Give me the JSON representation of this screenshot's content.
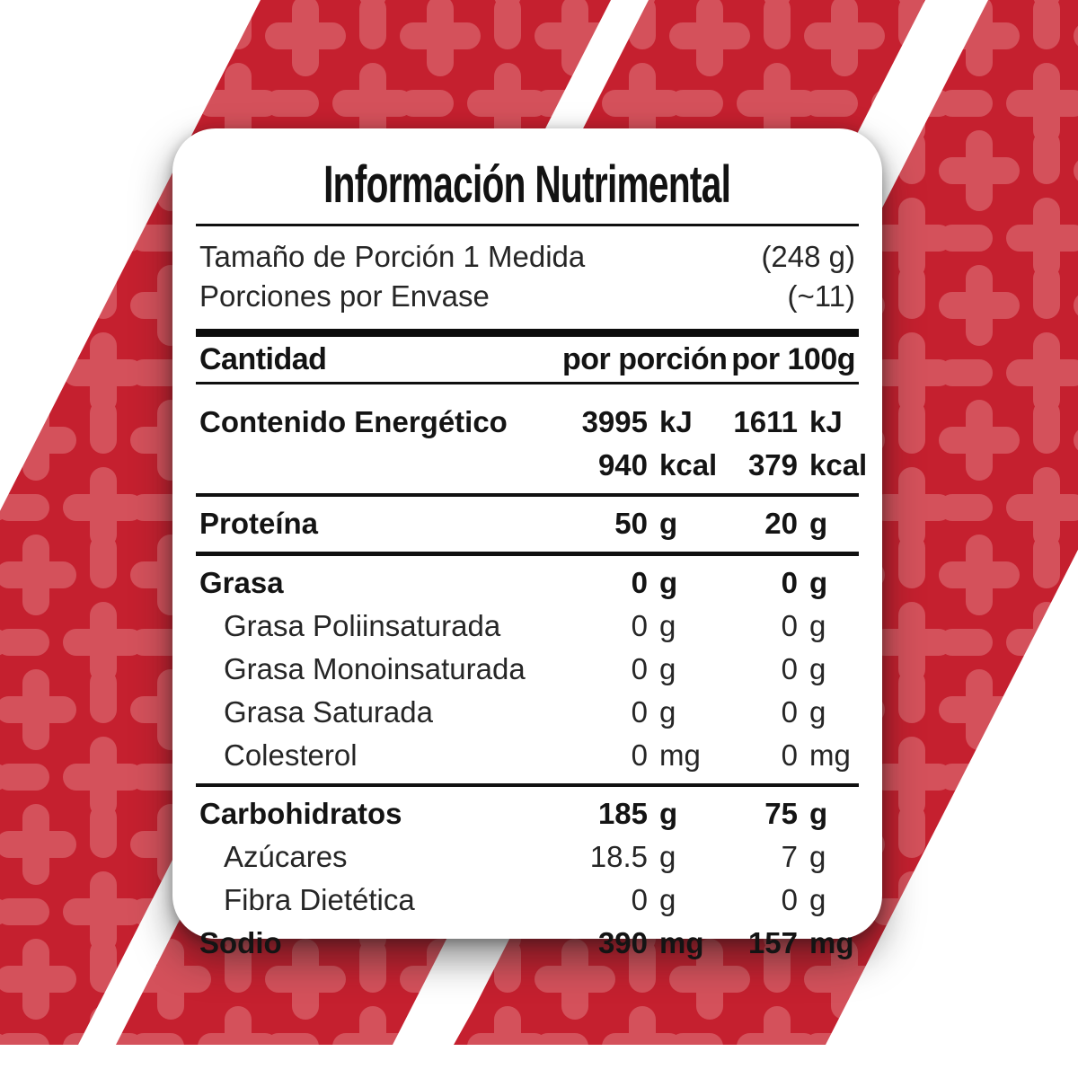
{
  "background": {
    "red_base": "#C5202F",
    "red_light": "#D4515B",
    "stripe_lean": "diagonal slashes leaning ~27deg, white gaps between stripes",
    "pattern": "rounded plus/maze tile"
  },
  "card": {
    "title": "Información Nutrimental",
    "serving": [
      {
        "label": "Tamaño de Porción 1 Medida",
        "value": "(248 g)"
      },
      {
        "label": "Porciones por Envase",
        "value": "(~11)"
      }
    ],
    "columns": {
      "label": "Cantidad",
      "col1": "por porción",
      "col2": "por 100g"
    },
    "rows": [
      {
        "label": "Contenido Energético",
        "bold": true,
        "gap_before": true,
        "v1": "3995",
        "u1": "kJ",
        "v2": "1611",
        "u2": "kJ"
      },
      {
        "label": "",
        "bold": true,
        "v1": "940",
        "u1": "kcal",
        "v2": "379",
        "u2": "kcal",
        "rule_after": 4
      },
      {
        "label": "Proteína",
        "bold": true,
        "v1": "50",
        "u1": "g",
        "v2": "20",
        "u2": "g",
        "rule_after": 5
      },
      {
        "label": "Grasa",
        "bold": true,
        "v1": "0",
        "u1": "g",
        "v2": "0",
        "u2": "g"
      },
      {
        "label": "Grasa Poliinsaturada",
        "indent": true,
        "v1": "0",
        "u1": "g",
        "v2": "0",
        "u2": "g"
      },
      {
        "label": "Grasa Monoinsaturada",
        "indent": true,
        "v1": "0",
        "u1": "g",
        "v2": "0",
        "u2": "g"
      },
      {
        "label": "Grasa Saturada",
        "indent": true,
        "v1": "0",
        "u1": "g",
        "v2": "0",
        "u2": "g"
      },
      {
        "label": "Colesterol",
        "indent": true,
        "v1": "0",
        "u1": "mg",
        "v2": "0",
        "u2": "mg",
        "rule_after": 4
      },
      {
        "label": "Carbohidratos",
        "bold": true,
        "v1": "185",
        "u1": "g",
        "v2": "75",
        "u2": "g"
      },
      {
        "label": "Azúcares",
        "indent": true,
        "v1": "18.5",
        "u1": "g",
        "v2": "7",
        "u2": "g"
      },
      {
        "label": "Fibra Dietética",
        "indent": true,
        "v1": "0",
        "u1": "g",
        "v2": "0",
        "u2": "g"
      },
      {
        "label": "Sodio",
        "bold": true,
        "v1": "390",
        "u1": "mg",
        "v2": "157",
        "u2": "mg"
      }
    ]
  }
}
